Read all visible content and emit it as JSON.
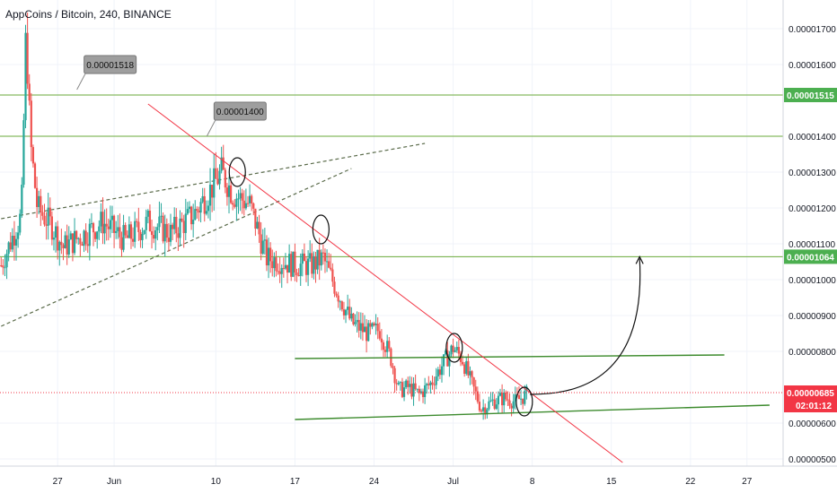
{
  "header": {
    "title": "AppCoins / Bitcoin, 240, BINANCE"
  },
  "colors": {
    "up": "#26a69a",
    "down": "#ef5350",
    "level": "#6aaa3a",
    "trendline": "#f23645",
    "note_fill": "#9e9e9e",
    "current_price_bg": "#f23645",
    "level_tag_bg": "#4caf50",
    "grid": "#f0f3fa"
  },
  "chart_data": {
    "type": "candlestick",
    "title": "AppCoins / Bitcoin, 240, BINANCE",
    "ylim": [
      4.8e-06,
      1.78e-05
    ],
    "y_ticks": [
      "0.00001700",
      "0.00001600",
      "0.00001400",
      "0.00001300",
      "0.00001200",
      "0.00001100",
      "0.00001000",
      "0.00000900",
      "0.00000800",
      "0.00000600",
      "0.00000500"
    ],
    "x_ticks": [
      {
        "label": "27",
        "day": 27
      },
      {
        "label": "Jun",
        "day": 32
      },
      {
        "label": "10",
        "day": 41
      },
      {
        "label": "17",
        "day": 48
      },
      {
        "label": "24",
        "day": 55
      },
      {
        "label": "Jul",
        "day": 62
      },
      {
        "label": "8",
        "day": 69
      },
      {
        "label": "15",
        "day": 76
      },
      {
        "label": "22",
        "day": 83
      },
      {
        "label": "27",
        "day": 88
      }
    ],
    "xlim_days": [
      21.9,
      91.2
    ],
    "price_path": [
      [
        22.0,
        1.04e-05
      ],
      [
        23.8,
        1.18e-05
      ],
      [
        24.2,
        1.7e-05
      ],
      [
        24.6,
        1.38e-05
      ],
      [
        25.2,
        1.2e-05
      ],
      [
        26.5,
        1.15e-05
      ],
      [
        27.5,
        1.09e-05
      ],
      [
        29.0,
        1.12e-05
      ],
      [
        31.0,
        1.16e-05
      ],
      [
        33.0,
        1.11e-05
      ],
      [
        35.0,
        1.16e-05
      ],
      [
        37.0,
        1.13e-05
      ],
      [
        39.0,
        1.18e-05
      ],
      [
        40.5,
        1.25e-05
      ],
      [
        41.5,
        1.3e-05
      ],
      [
        42.5,
        1.24e-05
      ],
      [
        44.0,
        1.21e-05
      ],
      [
        45.5,
        1.06e-05
      ],
      [
        47.0,
        1.05e-05
      ],
      [
        48.0,
        1.04e-05
      ],
      [
        49.5,
        1.04e-05
      ],
      [
        50.5,
        1.06e-05
      ],
      [
        51.0,
        1.02e-05
      ],
      [
        52.0,
        9.5e-06
      ],
      [
        53.0,
        8.8e-06
      ],
      [
        54.5,
        8.5e-06
      ],
      [
        55.5,
        8.6e-06
      ],
      [
        56.5,
        7.8e-06
      ],
      [
        57.2,
        6.9e-06
      ],
      [
        58.0,
        7e-06
      ],
      [
        59.0,
        6.8e-06
      ],
      [
        60.0,
        7.1e-06
      ],
      [
        61.0,
        7.6e-06
      ],
      [
        62.0,
        8.1e-06
      ],
      [
        62.8,
        7.8e-06
      ],
      [
        63.5,
        7.2e-06
      ],
      [
        64.5,
        6.4e-06
      ],
      [
        65.5,
        6.6e-06
      ],
      [
        66.5,
        6.7e-06
      ],
      [
        67.5,
        6.6e-06
      ],
      [
        68.5,
        6.8e-06
      ]
    ],
    "levels": [
      {
        "price": 1.515e-05,
        "tag": "0.00001515"
      },
      {
        "price": 1.4e-05,
        "tag": ""
      },
      {
        "price": 1.064e-05,
        "tag": "0.00001064"
      }
    ],
    "current_price": {
      "value": 6.85e-06,
      "tag": "0.00000685",
      "countdown": "02:01:12"
    },
    "lower_tick_label": "0.00000600",
    "channel_lines": [
      {
        "x1": 48.0,
        "y1": 7.8e-06,
        "x2": 86.0,
        "y2": 7.9e-06
      },
      {
        "x1": 48.0,
        "y1": 6.1e-06,
        "x2": 90.0,
        "y2": 6.5e-06
      }
    ],
    "trendline": {
      "x1": 35.0,
      "y1": 1.49e-05,
      "x2": 77.0,
      "y2": 4.9e-06
    },
    "wedge_upper": {
      "x1": 22.0,
      "y1": 1.17e-05,
      "x2": 59.5,
      "y2": 1.38e-05
    },
    "wedge_lower": {
      "x1": 22.0,
      "y1": 8.7e-06,
      "x2": 53.0,
      "y2": 1.31e-05
    },
    "notes": [
      {
        "text": "0.00001518",
        "x": 29.5,
        "y": 1.6e-05
      },
      {
        "text": "0.00001400",
        "x": 41.0,
        "y": 1.47e-05
      }
    ],
    "forecast_arrow_target": {
      "day": 78.5,
      "price": 1.064e-05
    }
  }
}
